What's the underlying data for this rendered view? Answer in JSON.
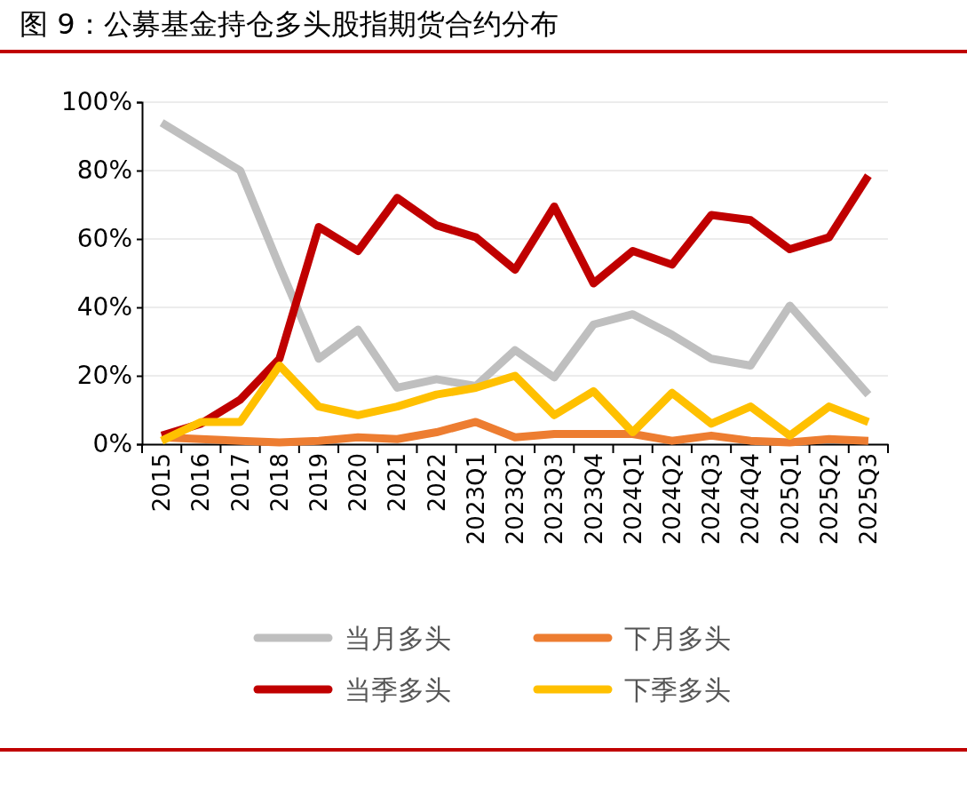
{
  "chart_data": {
    "type": "line",
    "title": "图 9：公募基金持仓多头股指期货合约分布",
    "categories": [
      "2015",
      "2016",
      "2017",
      "2018",
      "2019",
      "2020",
      "2021",
      "2022",
      "2023Q1",
      "2023Q2",
      "2023Q3",
      "2023Q4",
      "2024Q1",
      "2024Q2",
      "2024Q3",
      "2024Q4",
      "2025Q1",
      "2025Q2",
      "2025Q3"
    ],
    "ylim": [
      0,
      100
    ],
    "yticks": [
      {
        "value": 0,
        "label": "0%"
      },
      {
        "value": 20,
        "label": "20%"
      },
      {
        "value": 40,
        "label": "40%"
      },
      {
        "value": 60,
        "label": "60%"
      },
      {
        "value": 80,
        "label": "80%"
      },
      {
        "value": 100,
        "label": "100%"
      }
    ],
    "grid": "y",
    "legend": "bottom",
    "marker": "none",
    "line_style": "solid",
    "series": [
      {
        "name": "当月多头",
        "color": "#bfbfbf",
        "values": [
          94,
          87,
          80,
          52,
          25,
          33.5,
          16.5,
          19,
          17,
          27.5,
          19.5,
          35,
          38,
          32,
          25,
          23,
          40.5,
          27.5,
          14.5
        ]
      },
      {
        "name": "下月多头",
        "color": "#ed7d31",
        "values": [
          2,
          1.5,
          1,
          0.5,
          1,
          2,
          1.5,
          3.5,
          6.5,
          2,
          3,
          3,
          3,
          1,
          2.5,
          1,
          0.5,
          1.5,
          1
        ]
      },
      {
        "name": "当季多头",
        "color": "#c00000",
        "values": [
          2.5,
          6,
          13,
          25,
          63.5,
          56.5,
          72,
          64,
          60.5,
          51,
          69.5,
          47,
          56.5,
          52.5,
          67,
          65.5,
          57,
          60.5,
          78.5
        ]
      },
      {
        "name": "下季多头",
        "color": "#ffc000",
        "values": [
          1,
          6.5,
          6.5,
          23,
          11,
          8.5,
          11,
          14.5,
          16.5,
          20,
          8.5,
          15.5,
          3.5,
          15,
          6,
          11,
          2.5,
          11,
          6.5
        ]
      }
    ]
  }
}
